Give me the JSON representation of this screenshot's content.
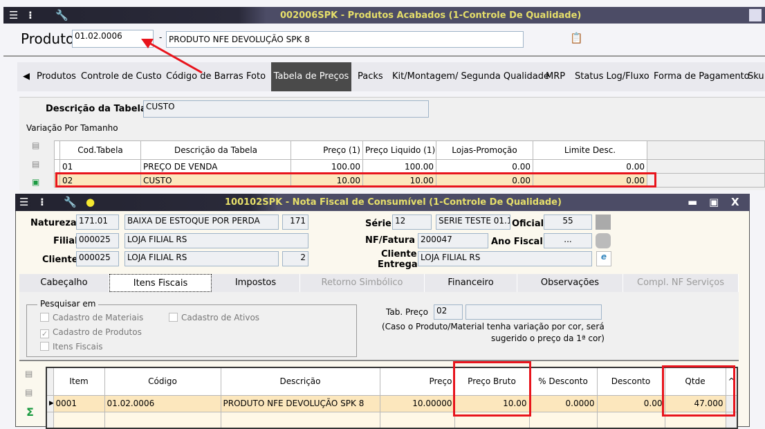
{
  "window1": {
    "title": "002006SPK - Produtos Acabados (1-Controle De Qualidade)",
    "produto_label": "Produto",
    "produto_code": "01.02.0006",
    "dash": "-",
    "produto_desc": "PRODUTO NFE DEVOLUÇÃO SPK 8",
    "tabs": [
      "Produtos",
      "Controle de Custo",
      "Código de Barras",
      "Foto",
      "Tabela de Preços",
      "Packs",
      "Kit/Montagem/ Segunda Qualidade",
      "MRP",
      "Status Log/Fluxo",
      "Forma de Pagamento",
      "Sku"
    ],
    "selected_tab": "Tabela de Preços",
    "descricao_label": "Descrição da Tabela",
    "descricao_value": "CUSTO",
    "variacao_label": "Variação Por Tamanho",
    "grid": {
      "headers": [
        "Cod.Tabela",
        "Descrição da Tabela",
        "Preço (1)",
        "Preço Liquido (1)",
        "Lojas-Promoção",
        "Limite Desc."
      ],
      "rows": [
        [
          "01",
          "PREÇO DE VENDA",
          "100.00",
          "100.00",
          "0.00",
          "0.00"
        ],
        [
          "02",
          "CUSTO",
          "10.00",
          "10.00",
          "0.00",
          "0.00"
        ]
      ]
    }
  },
  "window2": {
    "title": "100102SPK - Nota Fiscal de Consumível (1-Controle De Qualidade)",
    "natureza": {
      "label": "Natureza",
      "code": "171.01",
      "desc": "BAIXA DE ESTOQUE POR PERDA",
      "num": "171"
    },
    "filial": {
      "label": "Filial",
      "code": "000025",
      "desc": "LOJA FILIAL RS"
    },
    "cliente": {
      "label": "Cliente",
      "code": "000025",
      "desc": "LOJA FILIAL RS",
      "num": "2"
    },
    "serie": {
      "label": "Série",
      "code": "12",
      "desc": "SERIE TESTE 01.1"
    },
    "oficial": {
      "label": "Oficial",
      "value": "55"
    },
    "nf": {
      "label": "NF/Fatura",
      "value": "200047"
    },
    "ano": {
      "label": "Ano Fiscal",
      "value": "..."
    },
    "cliente_entrega": {
      "label1": "Cliente",
      "label2": "Entrega",
      "value": "LOJA FILIAL RS"
    },
    "tabs": [
      "Cabeçalho",
      "Itens Fiscais",
      "Impostos",
      "Retorno Simbólico",
      "Financeiro",
      "Observações",
      "Compl. NF Serviços"
    ],
    "selected_tab": "Itens Fiscais",
    "pesquisar": {
      "legend": "Pesquisar em",
      "options": [
        {
          "label": "Cadastro de Materiais",
          "checked": false
        },
        {
          "label": "Cadastro de Ativos",
          "checked": false
        },
        {
          "label": "Cadastro de Produtos",
          "checked": true
        },
        {
          "label": "Itens Fiscais",
          "checked": false
        }
      ]
    },
    "tab_preco": {
      "label": "Tab. Preço",
      "value": "02",
      "note1": "(Caso o Produto/Material tenha variação por cor, será",
      "note2": "sugerido o preço da 1ª cor)"
    },
    "grid": {
      "headers": [
        "Item",
        "Código",
        "Descrição",
        "Preço",
        "Preço Bruto",
        "% Desconto",
        "Desconto",
        "Qtde"
      ],
      "rows": [
        [
          "0001",
          "01.02.0006",
          "PRODUTO NFE DEVOLUÇÃO SPK 8",
          "10.00000",
          "10.00",
          "0.0000",
          "0.00",
          "47.000"
        ]
      ]
    }
  },
  "colors": {
    "title_text": "#e6df6a",
    "highlight_row": "#fce7bd",
    "annotation": "#e8141c"
  }
}
